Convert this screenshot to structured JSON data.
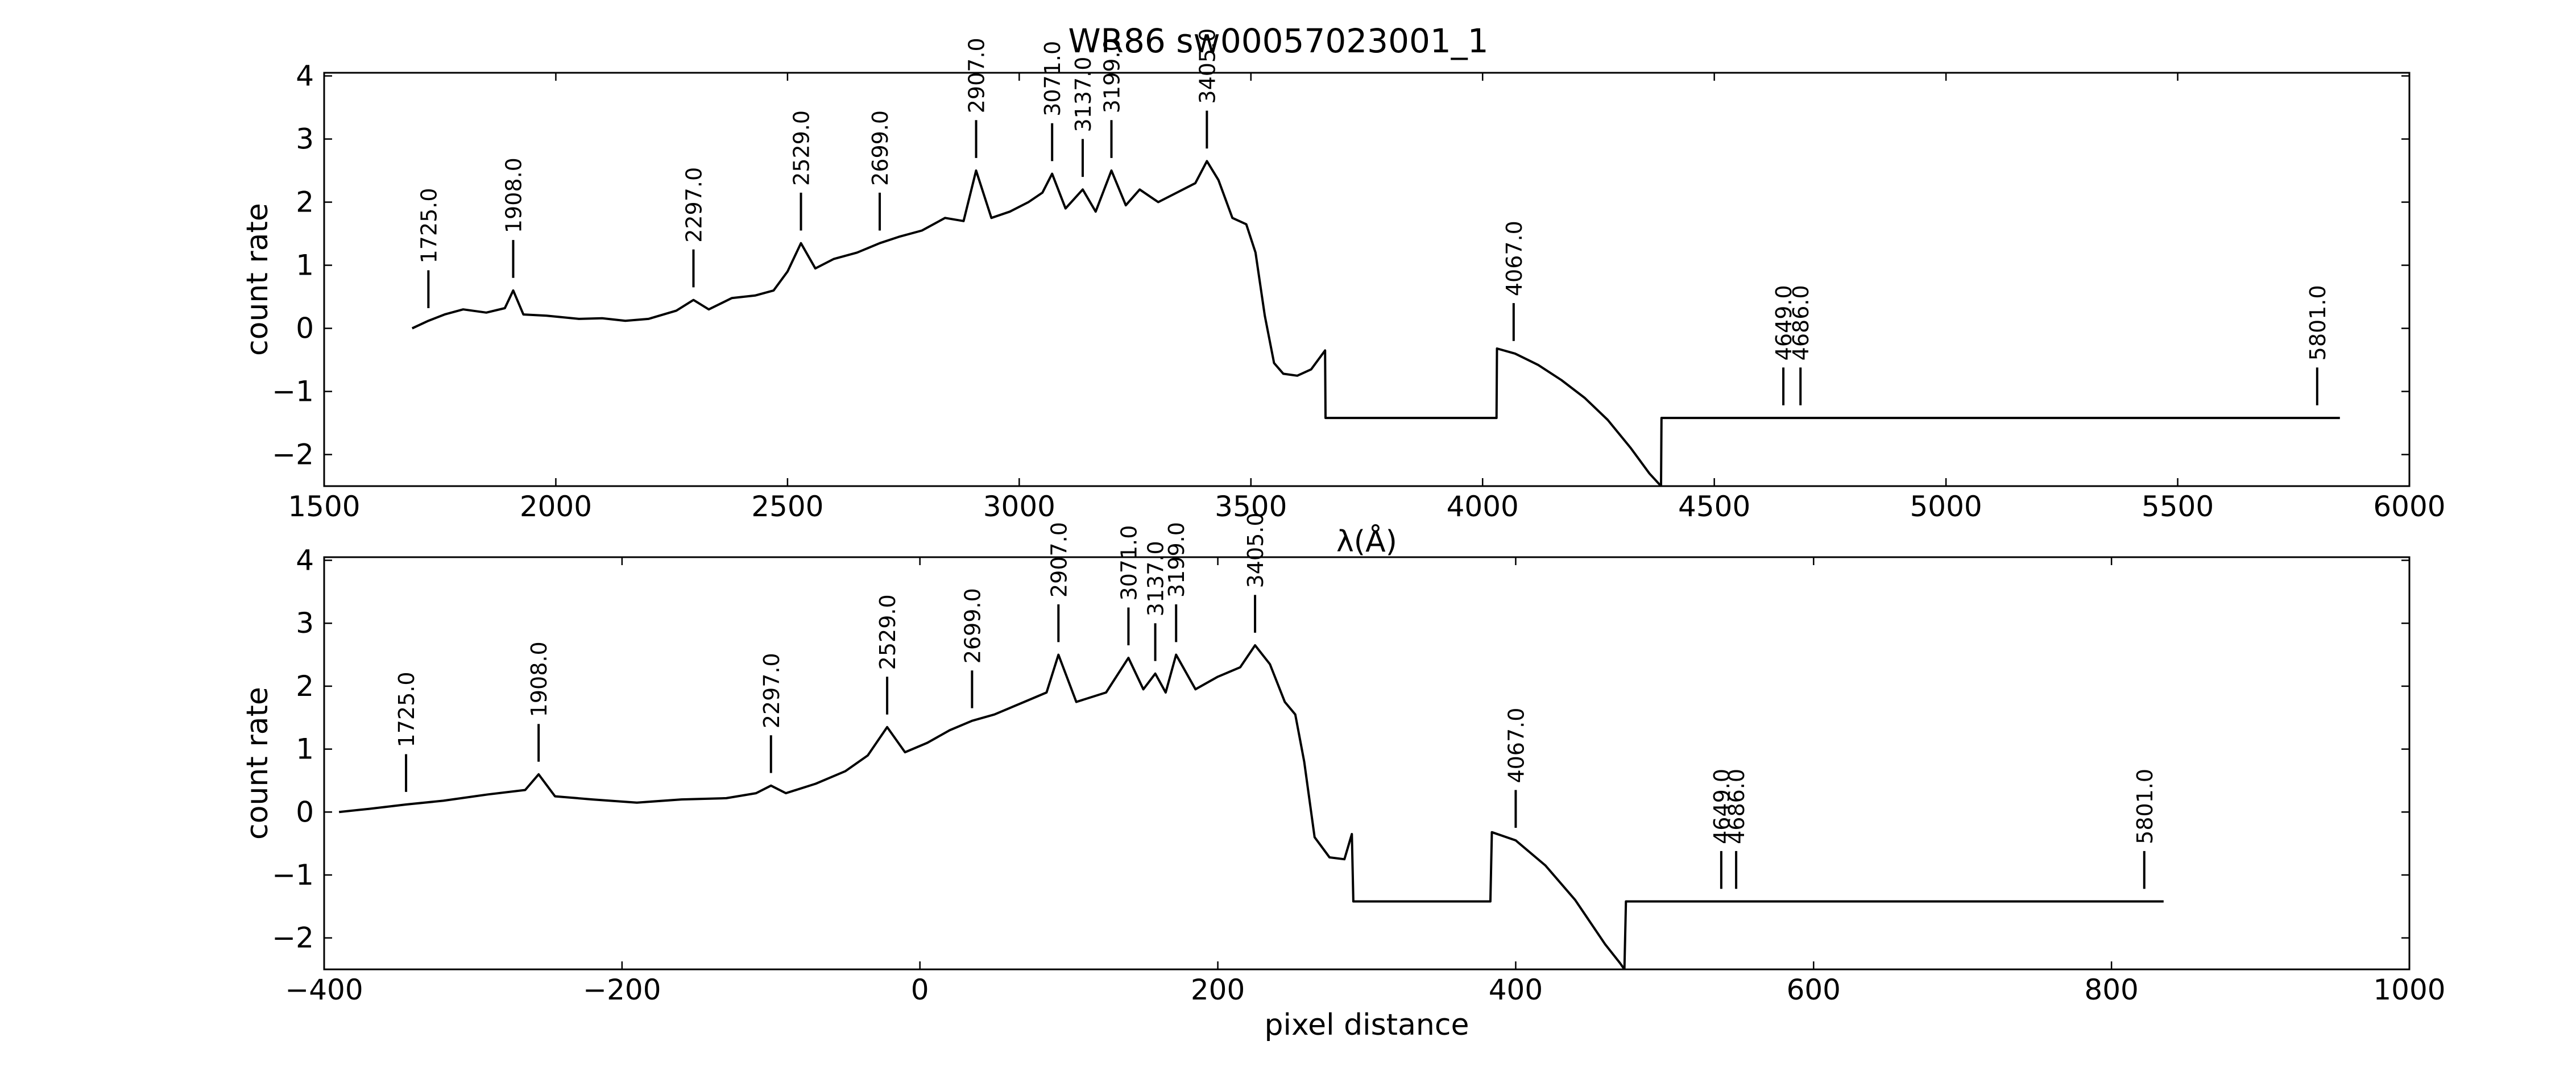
{
  "figure": {
    "title": "WR86  sw00057023001_1"
  },
  "chart_data": [
    {
      "type": "line",
      "title": "WR86  sw00057023001_1",
      "xlabel": "λ(Å)",
      "ylabel": "count rate",
      "xlim": [
        1500,
        6000
      ],
      "ylim": [
        -2.5,
        4.05
      ],
      "xticks": [
        1500,
        2000,
        2500,
        3000,
        3500,
        4000,
        4500,
        5000,
        5500,
        6000
      ],
      "yticks": [
        -2,
        -1,
        0,
        1,
        2,
        3,
        4
      ],
      "grid": false,
      "series": [
        {
          "x": [
            1690,
            1725,
            1760,
            1800,
            1850,
            1890,
            1908,
            1930,
            1980,
            2050,
            2100,
            2150,
            2200,
            2260,
            2297,
            2330,
            2380,
            2430,
            2470,
            2500,
            2529,
            2560,
            2600,
            2650,
            2699,
            2740,
            2790,
            2840,
            2880,
            2907,
            2940,
            2980,
            3020,
            3050,
            3071,
            3100,
            3137,
            3165,
            3199,
            3230,
            3260,
            3300,
            3340,
            3380,
            3405,
            3430,
            3460,
            3490,
            3510,
            3530,
            3550,
            3570,
            3600,
            3630,
            3660,
            3661,
            4030,
            4031,
            4070,
            4120,
            4170,
            4220,
            4270,
            4320,
            4360,
            4385,
            4386,
            5850
          ],
          "y": [
            0.0,
            0.12,
            0.22,
            0.3,
            0.25,
            0.32,
            0.6,
            0.22,
            0.2,
            0.15,
            0.16,
            0.12,
            0.15,
            0.28,
            0.45,
            0.3,
            0.48,
            0.52,
            0.6,
            0.9,
            1.35,
            0.95,
            1.1,
            1.2,
            1.35,
            1.45,
            1.55,
            1.75,
            1.7,
            2.5,
            1.75,
            1.85,
            2.0,
            2.15,
            2.45,
            1.9,
            2.2,
            1.85,
            2.5,
            1.95,
            2.2,
            2.0,
            2.15,
            2.3,
            2.65,
            2.35,
            1.75,
            1.65,
            1.2,
            0.2,
            -0.55,
            -0.72,
            -0.75,
            -0.65,
            -0.35,
            -1.42,
            -1.42,
            -0.32,
            -0.4,
            -0.58,
            -0.82,
            -1.1,
            -1.45,
            -1.9,
            -2.3,
            -2.5,
            -1.42,
            -1.42
          ]
        }
      ],
      "annotations": [
        {
          "label": "1725.0",
          "x": 1725
        },
        {
          "label": "1908.0",
          "x": 1908
        },
        {
          "label": "2297.0",
          "x": 2297
        },
        {
          "label": "2529.0",
          "x": 2529
        },
        {
          "label": "2699.0",
          "x": 2699
        },
        {
          "label": "2907.0",
          "x": 2907
        },
        {
          "label": "3071.0",
          "x": 3071
        },
        {
          "label": "3137.0",
          "x": 3137
        },
        {
          "label": "3199.0",
          "x": 3199
        },
        {
          "label": "3405.0",
          "x": 3405
        },
        {
          "label": "4067.0",
          "x": 4067
        },
        {
          "label": "4649.0",
          "x": 4649
        },
        {
          "label": "4686.0",
          "x": 4686
        },
        {
          "label": "5801.0",
          "x": 5801
        }
      ]
    },
    {
      "type": "line",
      "xlabel": "pixel distance",
      "ylabel": "count rate",
      "xlim": [
        -400,
        1000
      ],
      "ylim": [
        -2.5,
        4.05
      ],
      "xticks": [
        -400,
        -200,
        0,
        200,
        400,
        600,
        800,
        1000
      ],
      "yticks": [
        -2,
        -1,
        0,
        1,
        2,
        3,
        4
      ],
      "grid": false,
      "series": [
        {
          "x": [
            -390,
            -370,
            -345,
            -320,
            -290,
            -265,
            -256,
            -245,
            -220,
            -190,
            -160,
            -130,
            -110,
            -100,
            -90,
            -70,
            -50,
            -35,
            -22,
            -10,
            5,
            20,
            35,
            50,
            70,
            85,
            93,
            105,
            125,
            140,
            150,
            158,
            165,
            172,
            185,
            200,
            215,
            225,
            235,
            245,
            252,
            258,
            265,
            275,
            285,
            290,
            291,
            383,
            384,
            400,
            420,
            440,
            460,
            470,
            473,
            474,
            835
          ],
          "y": [
            0.0,
            0.05,
            0.12,
            0.18,
            0.28,
            0.35,
            0.6,
            0.25,
            0.2,
            0.15,
            0.2,
            0.22,
            0.3,
            0.42,
            0.3,
            0.45,
            0.65,
            0.9,
            1.35,
            0.95,
            1.1,
            1.3,
            1.45,
            1.55,
            1.75,
            1.9,
            2.5,
            1.75,
            1.9,
            2.45,
            1.95,
            2.2,
            1.9,
            2.5,
            1.95,
            2.15,
            2.3,
            2.65,
            2.35,
            1.75,
            1.55,
            0.8,
            -0.4,
            -0.72,
            -0.75,
            -0.35,
            -1.42,
            -1.42,
            -0.32,
            -0.45,
            -0.85,
            -1.4,
            -2.1,
            -2.4,
            -2.5,
            -1.42,
            -1.42
          ]
        }
      ],
      "annotations": [
        {
          "label": "1725.0",
          "x": -345
        },
        {
          "label": "1908.0",
          "x": -256
        },
        {
          "label": "2297.0",
          "x": -100
        },
        {
          "label": "2529.0",
          "x": -22
        },
        {
          "label": "2699.0",
          "x": 35
        },
        {
          "label": "2907.0",
          "x": 93
        },
        {
          "label": "3071.0",
          "x": 140
        },
        {
          "label": "3137.0",
          "x": 158
        },
        {
          "label": "3199.0",
          "x": 172
        },
        {
          "label": "3405.0",
          "x": 225
        },
        {
          "label": "4067.0",
          "x": 400
        },
        {
          "label": "4649.0",
          "x": 538
        },
        {
          "label": "4686.0",
          "x": 548
        },
        {
          "label": "5801.0",
          "x": 822
        }
      ]
    }
  ]
}
